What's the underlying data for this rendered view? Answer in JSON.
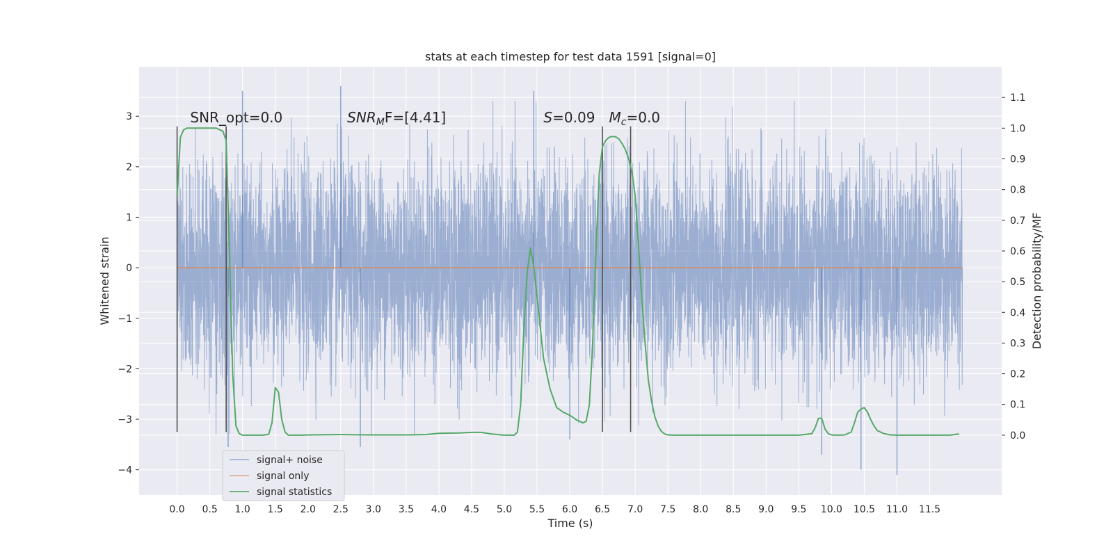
{
  "chart_data": {
    "type": "line",
    "title": "stats at each timestep for test data 1591 [signal=0]",
    "xlabel": "Time (s)",
    "ylabel": "Whitened strain",
    "y2label": "Detection probability/MF",
    "xlim": [
      -0.58,
      12.6
    ],
    "ylim": [
      -4.5,
      3.98
    ],
    "y2lim": [
      -0.195,
      1.2
    ],
    "xticks": [
      0.0,
      0.5,
      1.0,
      1.5,
      2.0,
      2.5,
      3.0,
      3.5,
      4.0,
      4.5,
      5.0,
      5.5,
      6.0,
      6.5,
      7.0,
      7.5,
      8.0,
      8.5,
      9.0,
      9.5,
      10.0,
      10.5,
      11.0,
      11.5
    ],
    "xtick_labels": [
      "0.0",
      "0.5",
      "1.0",
      "1.5",
      "2.0",
      "2.5",
      "3.0",
      "3.5",
      "4.0",
      "4.5",
      "5.0",
      "5.5",
      "6.0",
      "6.5",
      "7.0",
      "7.5",
      "8.0",
      "8.5",
      "9.0",
      "9.5",
      "10.0",
      "10.5",
      "11.0",
      "11.5"
    ],
    "yticks": [
      -4,
      -3,
      -2,
      -1,
      0,
      1,
      2,
      3
    ],
    "ytick_labels": [
      "−4",
      "−3",
      "−2",
      "−1",
      "0",
      "1",
      "2",
      "3"
    ],
    "y2ticks": [
      0.0,
      0.1,
      0.2,
      0.3,
      0.4,
      0.5,
      0.6,
      0.7,
      0.8,
      0.9,
      1.0,
      1.1
    ],
    "y2tick_labels": [
      "0.0",
      "0.1",
      "0.2",
      "0.3",
      "0.4",
      "0.5",
      "0.6",
      "0.7",
      "0.8",
      "0.9",
      "1.0",
      "1.1"
    ],
    "grid": true,
    "legend_position": "lower-left",
    "colors": {
      "background": "#eaeaf2",
      "grid": "#ffffff",
      "noise": "#4c72b0",
      "signal": "#dd8452",
      "stats": "#55a868",
      "vline": "#505050"
    },
    "series": [
      {
        "name": "signal+ noise",
        "axis": "left",
        "t_range": [
          0.0,
          12.0
        ],
        "sample_rate_hz": 512,
        "noise_sigma": 1.0,
        "extremes": [
          {
            "x": 0.78,
            "y": -3.55
          },
          {
            "x": 1.0,
            "y": 3.5
          },
          {
            "x": 2.5,
            "y": 3.6
          },
          {
            "x": 2.8,
            "y": -3.55
          },
          {
            "x": 5.45,
            "y": 3.5
          },
          {
            "x": 6.0,
            "y": -3.4
          },
          {
            "x": 9.85,
            "y": -3.7
          },
          {
            "x": 10.45,
            "y": -4.0
          },
          {
            "x": 11.0,
            "y": -4.1
          }
        ]
      },
      {
        "name": "signal only",
        "axis": "left",
        "x": [
          0.0,
          12.0
        ],
        "y": [
          0.0,
          0.0
        ]
      },
      {
        "name": "signal statistics",
        "axis": "right",
        "x": [
          0.0,
          0.05,
          0.1,
          0.15,
          0.2,
          0.3,
          0.4,
          0.5,
          0.6,
          0.7,
          0.75,
          0.8,
          0.85,
          0.9,
          0.95,
          1.0,
          1.1,
          1.2,
          1.3,
          1.4,
          1.45,
          1.5,
          1.55,
          1.6,
          1.65,
          1.7,
          1.75,
          1.8,
          1.9,
          2.0,
          2.5,
          3.0,
          3.5,
          3.8,
          4.0,
          4.3,
          4.5,
          4.65,
          4.8,
          5.0,
          5.15,
          5.2,
          5.25,
          5.3,
          5.35,
          5.4,
          5.45,
          5.5,
          5.55,
          5.6,
          5.7,
          5.8,
          5.9,
          6.0,
          6.1,
          6.2,
          6.25,
          6.3,
          6.35,
          6.4,
          6.45,
          6.5,
          6.55,
          6.6,
          6.65,
          6.7,
          6.75,
          6.8,
          6.85,
          6.9,
          6.95,
          7.0,
          7.05,
          7.1,
          7.15,
          7.2,
          7.25,
          7.3,
          7.35,
          7.4,
          7.45,
          7.5,
          7.6,
          7.7,
          8.0,
          8.5,
          9.0,
          9.5,
          9.7,
          9.75,
          9.8,
          9.85,
          9.9,
          9.95,
          10.0,
          10.1,
          10.2,
          10.3,
          10.35,
          10.4,
          10.45,
          10.5,
          10.55,
          10.6,
          10.65,
          10.7,
          10.8,
          10.9,
          11.0,
          11.2,
          11.5,
          11.8,
          11.95
        ],
        "y": [
          0.78,
          0.97,
          0.995,
          1.0,
          1.0,
          1.0,
          1.0,
          1.0,
          1.0,
          0.99,
          0.96,
          0.6,
          0.2,
          0.03,
          0.005,
          0.0,
          0.0,
          0.0,
          0.0,
          0.003,
          0.04,
          0.155,
          0.14,
          0.05,
          0.01,
          0.0,
          0.0,
          0.0,
          0.0,
          0.001,
          0.002,
          0.001,
          0.001,
          0.002,
          0.006,
          0.007,
          0.009,
          0.009,
          0.004,
          0.0,
          0.0,
          0.01,
          0.1,
          0.35,
          0.53,
          0.61,
          0.55,
          0.45,
          0.35,
          0.25,
          0.15,
          0.09,
          0.075,
          0.065,
          0.05,
          0.04,
          0.045,
          0.1,
          0.3,
          0.6,
          0.85,
          0.94,
          0.96,
          0.97,
          0.973,
          0.972,
          0.965,
          0.95,
          0.93,
          0.9,
          0.86,
          0.78,
          0.62,
          0.45,
          0.3,
          0.18,
          0.11,
          0.06,
          0.03,
          0.012,
          0.004,
          0.001,
          0.0,
          0.0,
          0.0,
          0.0,
          0.0,
          0.0,
          0.005,
          0.025,
          0.055,
          0.055,
          0.02,
          0.005,
          0.001,
          0.0,
          0.001,
          0.01,
          0.04,
          0.075,
          0.085,
          0.09,
          0.075,
          0.05,
          0.03,
          0.015,
          0.005,
          0.001,
          0.0,
          0.0,
          0.0,
          0.0,
          0.004
        ]
      }
    ],
    "vlines": [
      0.0,
      0.75,
      6.5,
      6.93
    ],
    "vline_range": [
      -3.25,
      2.8
    ],
    "annotations": [
      {
        "text": "SNR_opt=0.0",
        "x": 0.2,
        "y": 2.88,
        "style": "plain"
      },
      {
        "main": "SNR",
        "sub": "M",
        "after": "F=[4.41]",
        "x": 2.6,
        "y": 2.88,
        "style": "math"
      },
      {
        "main": "S",
        "sub": "",
        "after": "=0.09",
        "x": 5.6,
        "y": 2.88,
        "style": "math"
      },
      {
        "main": "M",
        "sub": "c",
        "after": "=0.0",
        "x": 6.6,
        "y": 2.88,
        "style": "math"
      }
    ]
  }
}
